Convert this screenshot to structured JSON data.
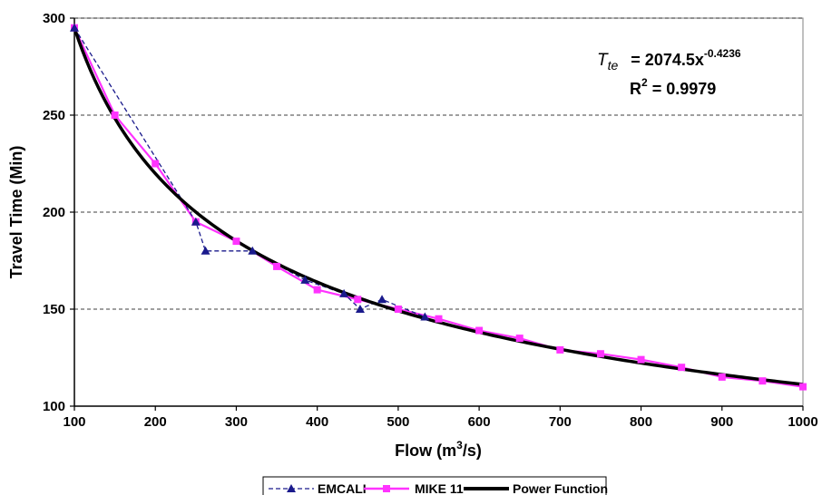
{
  "chart_data": {
    "type": "line",
    "xlabel_main": "Flow (m",
    "xlabel_sup": "3",
    "xlabel_end": "/s)",
    "ylabel": "Travel Time (Min)",
    "xlim": [
      100,
      1000
    ],
    "ylim": [
      100,
      300
    ],
    "x_ticks": [
      100,
      200,
      300,
      400,
      500,
      600,
      700,
      800,
      900,
      1000
    ],
    "y_ticks": [
      100,
      150,
      200,
      250,
      300
    ],
    "grid": "horizontal dashed",
    "legend_position": "bottom",
    "equation": {
      "lhs": "T",
      "lhs_sub": "te",
      "rhs": "= 2074.5x",
      "exponent": "-0.4236",
      "r2_label": "R",
      "r2_sup": "2",
      "r2_value": " = 0.9979"
    },
    "series": [
      {
        "name": "EMCALI",
        "color": "#1a1a8c",
        "style": "dashed",
        "marker": "triangle",
        "x": [
          100,
          250,
          262,
          320,
          385,
          433,
          453,
          480,
          533
        ],
        "y": [
          295,
          195,
          180,
          180,
          165,
          158,
          150,
          155,
          146
        ]
      },
      {
        "name": "MIKE 11",
        "color": "#ff33ff",
        "style": "solid",
        "marker": "square",
        "x": [
          100,
          150,
          200,
          250,
          300,
          350,
          400,
          450,
          500,
          550,
          600,
          650,
          700,
          750,
          800,
          850,
          900,
          950,
          1000
        ],
        "y": [
          295,
          250,
          225,
          195,
          185,
          172,
          160,
          155,
          150,
          145,
          139,
          135,
          129,
          127,
          124,
          120,
          115,
          113,
          110
        ]
      },
      {
        "name": "Power Function",
        "color": "#000000",
        "style": "solid",
        "marker": "none",
        "function": {
          "coefficient": 2074.5,
          "exponent": -0.4236
        }
      }
    ]
  }
}
